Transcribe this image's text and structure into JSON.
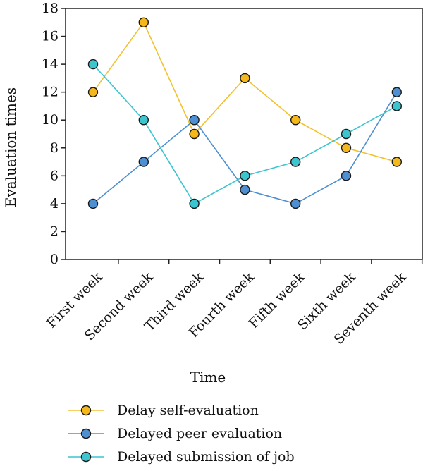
{
  "chart_data": {
    "type": "line",
    "xlabel": "Time",
    "ylabel": "Evaluation times",
    "ylim": [
      0,
      18
    ],
    "yticks": [
      0,
      2,
      4,
      6,
      8,
      10,
      12,
      14,
      16,
      18
    ],
    "categories": [
      "First week",
      "Second week",
      "Third week",
      "Fourth week",
      "Fifth week",
      "Sixth week",
      "Seventh week"
    ],
    "grid": false,
    "legend_position": "bottom",
    "series": [
      {
        "name": "Delay self-evaluation",
        "values": [
          12,
          17,
          9,
          13,
          10,
          8,
          7
        ],
        "line_color": "#f2c12e",
        "marker_color": "#f5b81c"
      },
      {
        "name": "Delayed peer evaluation",
        "values": [
          4,
          7,
          10,
          5,
          4,
          6,
          12
        ],
        "line_color": "#4d8fd1",
        "marker_color": "#4d8fd1"
      },
      {
        "name": "Delayed submission of job",
        "values": [
          14,
          10,
          4,
          6,
          7,
          9,
          11
        ],
        "line_color": "#3cc4cf",
        "marker_color": "#3cc4cf"
      }
    ]
  }
}
